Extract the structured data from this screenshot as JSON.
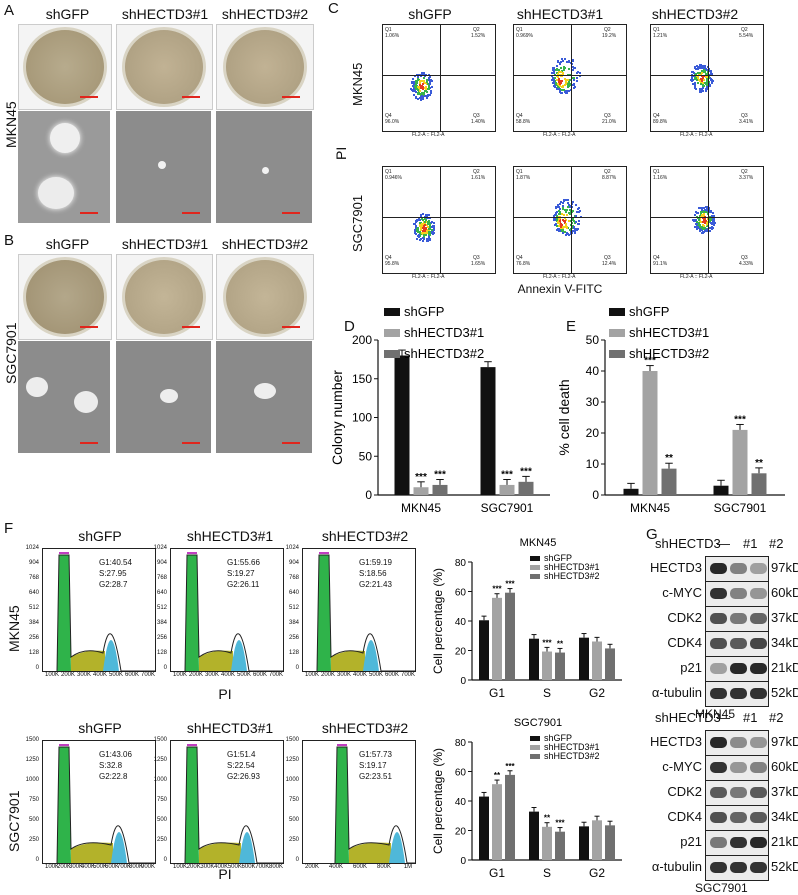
{
  "panels": {
    "A": "A",
    "B": "B",
    "C": "C",
    "D": "D",
    "E": "E",
    "F": "F",
    "G": "G"
  },
  "groups": [
    "shGFP",
    "shHECTD3#1",
    "shHECTD3#2"
  ],
  "cell_lines": [
    "MKN45",
    "SGC7901"
  ],
  "flow": {
    "y_label": "PI",
    "x_label": "Annexin V-FITC",
    "axis_name": "FL2-A :: FL2-A",
    "rows": [
      {
        "line": "MKN45",
        "plots": [
          {
            "q1": "1.06%",
            "q2": "1.52%",
            "q3": "1.40%",
            "q4": "96.0%"
          },
          {
            "q1": "0.969%",
            "q2": "19.2%",
            "q3": "21.0%",
            "q4": "58.8%"
          },
          {
            "q1": "1.21%",
            "q2": "5.54%",
            "q3": "3.41%",
            "q4": "89.8%"
          }
        ]
      },
      {
        "line": "SGC7901",
        "plots": [
          {
            "q1": "0.946%",
            "q2": "1.61%",
            "q3": "1.65%",
            "q4": "95.8%"
          },
          {
            "q1": "1.87%",
            "q2": "8.87%",
            "q3": "12.4%",
            "q4": "76.8%"
          },
          {
            "q1": "1.16%",
            "q2": "3.37%",
            "q3": "4.33%",
            "q4": "91.1%"
          }
        ]
      }
    ]
  },
  "chart_data": [
    {
      "panel": "D",
      "type": "bar",
      "ylabel": "Colony number",
      "categories": [
        "MKN45",
        "SGC7901"
      ],
      "ylim": [
        0,
        200
      ],
      "yticks": [
        0,
        50,
        100,
        150,
        200
      ],
      "series": [
        {
          "name": "shGFP",
          "values": [
            180,
            165
          ]
        },
        {
          "name": "shHECTD3#1",
          "values": [
            10,
            13
          ]
        },
        {
          "name": "shHECTD3#2",
          "values": [
            13,
            17
          ]
        }
      ],
      "annotations": [
        [
          "",
          "***",
          "***"
        ],
        [
          "",
          "***",
          "***"
        ]
      ]
    },
    {
      "panel": "E",
      "type": "bar",
      "ylabel": "% cell death",
      "categories": [
        "MKN45",
        "SGC7901"
      ],
      "ylim": [
        0,
        50
      ],
      "yticks": [
        0,
        10,
        20,
        30,
        40,
        50
      ],
      "series": [
        {
          "name": "shGFP",
          "values": [
            2,
            3
          ]
        },
        {
          "name": "shHECTD3#1",
          "values": [
            40,
            21
          ]
        },
        {
          "name": "shHECTD3#2",
          "values": [
            8.5,
            7
          ]
        }
      ],
      "annotations": [
        [
          "",
          "***",
          "**"
        ],
        [
          "",
          "***",
          "**"
        ]
      ]
    },
    {
      "panel": "F-MKN45",
      "type": "bar",
      "title": "MKN45",
      "ylabel": "Cell percentage (%)",
      "categories": [
        "G1",
        "S",
        "G2"
      ],
      "ylim": [
        0,
        80
      ],
      "yticks": [
        0,
        20,
        40,
        60,
        80
      ],
      "series": [
        {
          "name": "shGFP",
          "values": [
            40.5,
            28,
            28.7
          ]
        },
        {
          "name": "shHECTD3#1",
          "values": [
            55.7,
            19.3,
            26.1
          ]
        },
        {
          "name": "shHECTD3#2",
          "values": [
            59.2,
            18.6,
            21.4
          ]
        }
      ],
      "annotations": [
        [
          "",
          "***",
          "***"
        ],
        [
          "",
          "***",
          "**"
        ],
        [
          "",
          "",
          ""
        ]
      ]
    },
    {
      "panel": "F-SGC7901",
      "type": "bar",
      "title": "SGC7901",
      "ylabel": "Cell percentage (%)",
      "categories": [
        "G1",
        "S",
        "G2"
      ],
      "ylim": [
        0,
        80
      ],
      "yticks": [
        0,
        20,
        40,
        60,
        80
      ],
      "series": [
        {
          "name": "shGFP",
          "values": [
            43,
            32.8,
            22.8
          ]
        },
        {
          "name": "shHECTD3#1",
          "values": [
            51.4,
            22.5,
            26.9
          ]
        },
        {
          "name": "shHECTD3#2",
          "values": [
            57.7,
            19.2,
            23.5
          ]
        }
      ],
      "annotations": [
        [
          "",
          "**",
          "***"
        ],
        [
          "",
          "**",
          "***"
        ],
        [
          "",
          "",
          ""
        ]
      ]
    }
  ],
  "histograms": {
    "x_label": "PI",
    "rows": [
      {
        "line": "MKN45",
        "yticks": [
          "0",
          "128",
          "256",
          "384",
          "512",
          "640",
          "768",
          "904",
          "1024"
        ],
        "plots": [
          {
            "text": "G1:40.54\nS:27.95\nG2:28.7",
            "xticks": [
              "100K",
              "200K",
              "300K",
              "400K",
              "500K",
              "600K",
              "700K"
            ]
          },
          {
            "text": "G1:55.66\nS:19.27\nG2:26.11",
            "xticks": [
              "100K",
              "200K",
              "300K",
              "400K",
              "500K",
              "600K",
              "700K"
            ]
          },
          {
            "text": "G1:59.19\nS:18.56\nG2:21.43",
            "xticks": [
              "100K",
              "200K",
              "300K",
              "400K",
              "500K",
              "600K",
              "700K"
            ]
          }
        ]
      },
      {
        "line": "SGC7901",
        "yticks": [
          "0",
          "250",
          "500",
          "750",
          "1000",
          "1250",
          "1500"
        ],
        "plots": [
          {
            "text": "G1:43.06\nS:32.8\nG2:22.8",
            "xticks": [
              "100K",
              "200K",
              "300K",
              "400K",
              "500K",
              "600K",
              "700K",
              "800K",
              "900K"
            ]
          },
          {
            "text": "G1:51.4\nS:22.54\nG2:26.93",
            "xticks": [
              "100K",
              "200K",
              "300K",
              "400K",
              "500K",
              "600K",
              "700K",
              "800K"
            ]
          },
          {
            "text": "G1:57.73\nS:19.17\nG2:23.51",
            "xticks": [
              "200K",
              "400K",
              "600K",
              "800K",
              "1M"
            ]
          }
        ]
      }
    ]
  },
  "western": {
    "header": "shHECTD3",
    "lanes": [
      "—",
      "#1",
      "#2"
    ],
    "proteins": [
      "HECTD3",
      "c-MYC",
      "CDK2",
      "CDK4",
      "p21",
      "α-tubulin"
    ],
    "kda": [
      "97kDa",
      "60kDa",
      "37kDa",
      "34kDa",
      "21kDa",
      "52kDa"
    ],
    "blots": [
      {
        "line": "MKN45",
        "intensity": [
          [
            0.95,
            0.5,
            0.35
          ],
          [
            0.9,
            0.5,
            0.4
          ],
          [
            0.75,
            0.55,
            0.65
          ],
          [
            0.75,
            0.7,
            0.8
          ],
          [
            0.35,
            0.95,
            0.95
          ],
          [
            0.9,
            0.9,
            0.9
          ]
        ]
      },
      {
        "line": "SGC7901",
        "intensity": [
          [
            0.95,
            0.45,
            0.4
          ],
          [
            0.9,
            0.4,
            0.5
          ],
          [
            0.7,
            0.55,
            0.7
          ],
          [
            0.75,
            0.65,
            0.7
          ],
          [
            0.55,
            0.9,
            0.95
          ],
          [
            0.9,
            0.9,
            0.9
          ]
        ]
      }
    ]
  },
  "colors": {
    "bar1": "#111111",
    "bar2": "#a3a3a3",
    "bar3": "#707070",
    "scale": "#e0261d",
    "g1": "#2fb34a",
    "s": "#b3b22a",
    "g2": "#4fb8d9"
  }
}
